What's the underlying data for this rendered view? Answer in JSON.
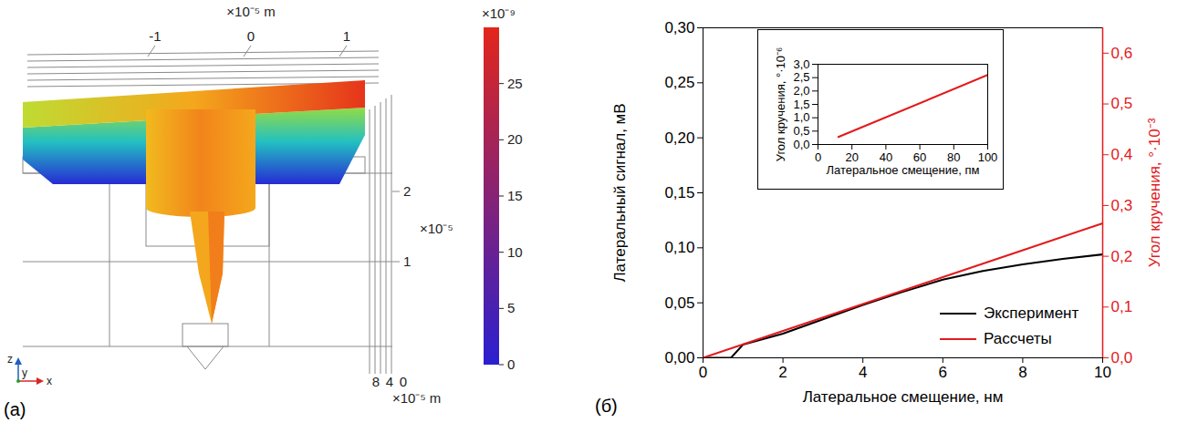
{
  "panel_a": {
    "label": "(a)",
    "top_axis": {
      "unit": "×10⁻⁵ m",
      "ticks": [
        -1,
        0,
        1
      ]
    },
    "right_axis": {
      "unit": "×10⁻⁵",
      "ticks": [
        2,
        1
      ]
    },
    "bottom_axis": {
      "unit": "×10⁻⁵ m",
      "ticks": [
        8,
        4,
        0
      ]
    },
    "colorbar": {
      "unit": "×10⁻⁹",
      "range": [
        0,
        30
      ],
      "ticks": [
        0,
        5,
        10,
        15,
        20,
        25
      ]
    },
    "triad": [
      "z",
      "y",
      "x"
    ]
  },
  "chart_data": [
    {
      "type": "line",
      "panel_label": "(б)",
      "xlabel": "Латеральное смещение, нм",
      "ylabel": "Латеральный сигнал, мВ",
      "y2label": "Угол кручения, °·10⁻³",
      "xlim": [
        0,
        10
      ],
      "xticks": [
        0,
        2,
        4,
        6,
        8,
        10
      ],
      "ylim": [
        0,
        0.3
      ],
      "yticks": [
        {
          "value": 0,
          "label": "0,00"
        },
        {
          "value": 0.05,
          "label": "0,05"
        },
        {
          "value": 0.1,
          "label": "0,10"
        },
        {
          "value": 0.15,
          "label": "0,15"
        },
        {
          "value": 0.2,
          "label": "0,20"
        },
        {
          "value": 0.25,
          "label": "0,25"
        },
        {
          "value": 0.3,
          "label": "0,30"
        }
      ],
      "y2lim": [
        0,
        0.65
      ],
      "y2ticks": [
        {
          "value": 0,
          "label": "0,0"
        },
        {
          "value": 0.1,
          "label": "0,1"
        },
        {
          "value": 0.2,
          "label": "0,2"
        },
        {
          "value": 0.3,
          "label": "0,3"
        },
        {
          "value": 0.4,
          "label": "0,4"
        },
        {
          "value": 0.5,
          "label": "0,5"
        },
        {
          "value": 0.6,
          "label": "0,6"
        }
      ],
      "legend": "lower right",
      "series": [
        {
          "name": "Эксперимент",
          "color": "#000000",
          "x": [
            0,
            0.7,
            1,
            2,
            3,
            4,
            5,
            6,
            7,
            8,
            9,
            10
          ],
          "values": [
            0,
            0,
            0.012,
            0.022,
            0.035,
            0.048,
            0.06,
            0.071,
            0.079,
            0.085,
            0.09,
            0.094
          ]
        },
        {
          "name": "Рассчеты",
          "color": "#e31a1c",
          "axis": "y2",
          "x": [
            0,
            2,
            4,
            6,
            8,
            10
          ],
          "values": [
            0,
            0.053,
            0.106,
            0.159,
            0.212,
            0.265
          ]
        }
      ]
    },
    {
      "type": "line",
      "xlabel": "Латеральное смещение, пм",
      "ylabel": "Угол кручения, °·10⁻⁶",
      "xlim": [
        0,
        100
      ],
      "xticks": [
        0,
        20,
        40,
        60,
        80,
        100
      ],
      "ylim": [
        0,
        3
      ],
      "yticks": [
        {
          "value": 0,
          "label": "0,0"
        },
        {
          "value": 0.5,
          "label": "0,5"
        },
        {
          "value": 1,
          "label": "1,0"
        },
        {
          "value": 1.5,
          "label": "1,5"
        },
        {
          "value": 2,
          "label": "2,0"
        },
        {
          "value": 2.5,
          "label": "2,5"
        },
        {
          "value": 3,
          "label": "3,0"
        }
      ],
      "color": "#e31a1c",
      "x": [
        12,
        100
      ],
      "values": [
        0.28,
        2.6
      ]
    }
  ]
}
